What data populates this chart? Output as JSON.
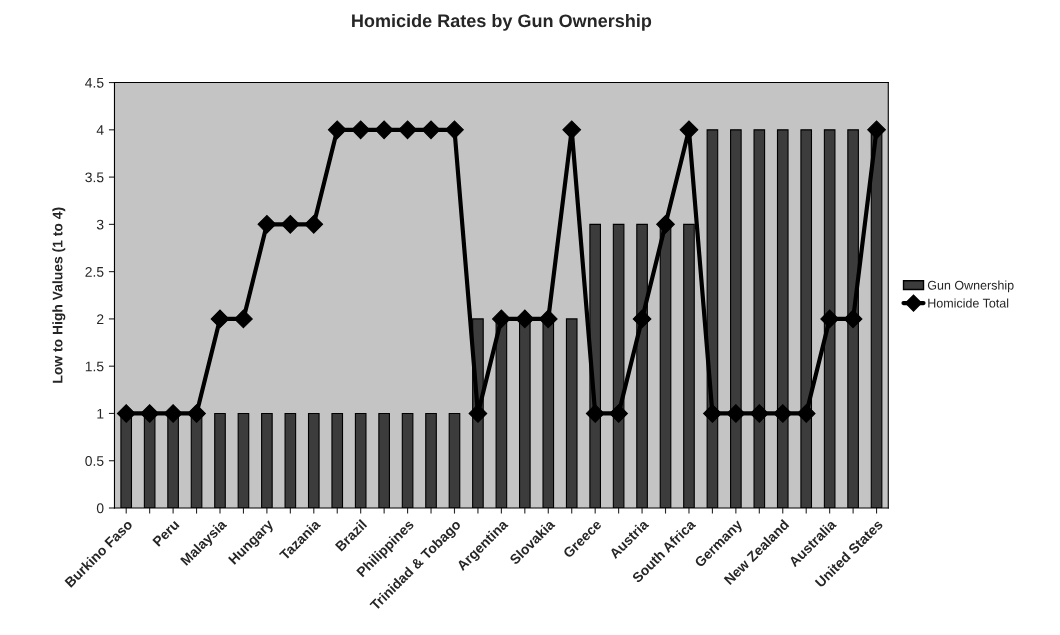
{
  "chart_data": {
    "type": "bar",
    "title": "Homicide Rates by Gun Ownership",
    "ylabel": "Low to High Values (1 to 4)",
    "categories": [
      "Burkino Faso",
      null,
      "Peru",
      null,
      "Malaysia",
      null,
      "Hungary",
      null,
      "Tazania",
      null,
      "Brazil",
      null,
      "Philippines",
      null,
      "Trinidad & Tobago",
      null,
      "Argentina",
      null,
      "Slovakia",
      null,
      "Greece",
      null,
      "Austria",
      null,
      "South Africa",
      null,
      "Germany",
      null,
      "New Zealand",
      null,
      "Australia",
      null,
      "United States"
    ],
    "series": [
      {
        "name": "Gun Ownership",
        "color": "#3c3c3c",
        "values": [
          1,
          1,
          1,
          1,
          1,
          1,
          1,
          1,
          1,
          1,
          1,
          1,
          1,
          1,
          1,
          2,
          2,
          2,
          2,
          2,
          3,
          3,
          3,
          3,
          3,
          4,
          4,
          4,
          4,
          4,
          4,
          4,
          4
        ]
      },
      {
        "name": "Homicide Total",
        "type": "line",
        "color": "#000000",
        "marker": "diamond",
        "values": [
          1,
          1,
          1,
          1,
          2,
          2,
          3,
          3,
          3,
          4,
          4,
          4,
          4,
          4,
          4,
          1,
          2,
          2,
          2,
          4,
          1,
          1,
          2,
          3,
          4,
          1,
          1,
          1,
          1,
          1,
          2,
          2,
          4
        ]
      }
    ],
    "ylim": [
      0,
      4.5
    ],
    "yticks": [
      0,
      0.5,
      1,
      1.5,
      2,
      2.5,
      3,
      3.5,
      4,
      4.5
    ],
    "grid": false,
    "legend": "right"
  }
}
